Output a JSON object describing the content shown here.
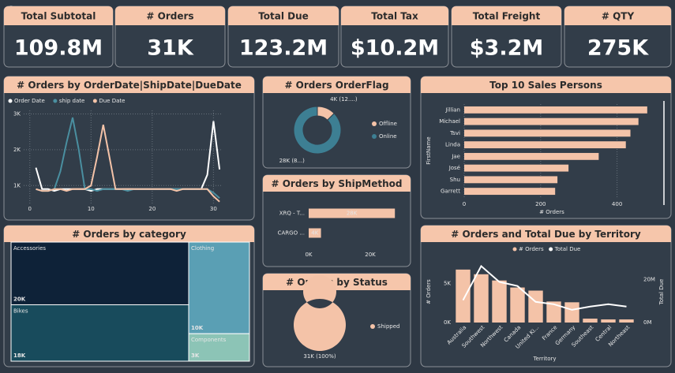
{
  "kpis": [
    {
      "label": "Total Subtotal",
      "value": "109.8M"
    },
    {
      "label": "# Orders",
      "value": "31K"
    },
    {
      "label": "Total Due",
      "value": "123.2M"
    },
    {
      "label": "Total Tax",
      "value": "$10.2M"
    },
    {
      "label": "Total Freight",
      "value": "$3.2M"
    },
    {
      "label": "# QTY",
      "value": "275K"
    }
  ],
  "chart_data": [
    {
      "type": "line",
      "title": "# Orders by OrderDate|ShipDate|DueDate",
      "x": [
        1,
        2,
        3,
        4,
        5,
        6,
        7,
        8,
        9,
        10,
        11,
        12,
        13,
        14,
        15,
        16,
        17,
        18,
        19,
        20,
        21,
        22,
        23,
        24,
        25,
        26,
        27,
        28,
        29,
        30,
        31
      ],
      "xlim": [
        -1,
        31.5
      ],
      "xticks": [
        0,
        10,
        20,
        30
      ],
      "ylim": [
        500,
        3100
      ],
      "yticks": [
        {
          "value": 1000,
          "label": "1K"
        },
        {
          "value": 2000,
          "label": "2K"
        },
        {
          "value": 3000,
          "label": "3K"
        }
      ],
      "grid": true,
      "series": [
        {
          "name": "Order Date",
          "color": "#ffffff",
          "values": [
            1500,
            900,
            900,
            850,
            900,
            900,
            900,
            900,
            900,
            850,
            900,
            900,
            900,
            900,
            900,
            900,
            900,
            900,
            900,
            900,
            900,
            900,
            900,
            900,
            900,
            900,
            900,
            900,
            1300,
            2800,
            1450
          ]
        },
        {
          "name": "ship date",
          "color": "#4a8fa0",
          "values": [
            900,
            850,
            850,
            900,
            1400,
            2200,
            2900,
            2000,
            900,
            900,
            850,
            900,
            900,
            900,
            900,
            850,
            900,
            900,
            900,
            900,
            900,
            900,
            900,
            900,
            900,
            900,
            900,
            900,
            900,
            800,
            650
          ]
        },
        {
          "name": "Due Date",
          "color": "#f4c3a8",
          "values": [
            900,
            850,
            850,
            900,
            900,
            850,
            900,
            900,
            900,
            1000,
            1800,
            2700,
            1800,
            900,
            900,
            900,
            900,
            900,
            900,
            900,
            900,
            900,
            900,
            850,
            900,
            900,
            900,
            900,
            900,
            700,
            550
          ]
        }
      ]
    },
    {
      "type": "pie",
      "donut": true,
      "title": "# Orders OrderFlag",
      "categories": [
        "Offline",
        "Online"
      ],
      "values": [
        4000,
        28000
      ],
      "value_labels": [
        "4K (12....)",
        "28K (8...)"
      ],
      "colors": [
        "#f4c3a8",
        "#3d7f93"
      ]
    },
    {
      "type": "hbar",
      "title": "# Orders by ShipMethod",
      "categories": [
        "XRQ - T...",
        "CARGO ..."
      ],
      "values": [
        28000,
        4000
      ],
      "value_labels": [
        "28K",
        "4K"
      ],
      "color": "#f4c3a8",
      "xlim": [
        0,
        30000
      ],
      "xticks": [
        {
          "value": 0,
          "label": "0K"
        },
        {
          "value": 20000,
          "label": "20K"
        }
      ],
      "grid": false
    },
    {
      "type": "pie",
      "donut": true,
      "title": "# Orders by Status",
      "categories": [
        "Shipped"
      ],
      "values": [
        31000
      ],
      "value_labels": [
        "31K (100%)"
      ],
      "colors": [
        "#f4c3a8"
      ]
    },
    {
      "type": "hbar",
      "title": "Top 10 Sales Persons",
      "categories": [
        "Jillian",
        "Michael",
        "Tsvi",
        "Linda",
        "Jae",
        "José",
        "Shu",
        "Garrett"
      ],
      "values": [
        479,
        456,
        435,
        423,
        352,
        273,
        244,
        238
      ],
      "color": "#f4c3a8",
      "xlim": [
        0,
        500
      ],
      "xticks": [
        0,
        200,
        400
      ],
      "xlabel": "# Orders",
      "ylabel": "FirstName",
      "grid": true
    },
    {
      "type": "treemap",
      "title": "# Orders by category",
      "categories": [
        "Accessories",
        "Bikes",
        "Clothing",
        "Components"
      ],
      "values": [
        20000,
        18000,
        10000,
        3000
      ],
      "value_labels": [
        "20K",
        "18K",
        "10K",
        "3K"
      ],
      "colors": [
        "#0e2238",
        "#184b5c",
        "#5a9fb4",
        "#8cc4b6"
      ]
    },
    {
      "type": "combo",
      "title": "# Orders and Total Due by Territory",
      "categories": [
        "Australia",
        "Southwest",
        "Northwest",
        "Canada",
        "United Ki...",
        "France",
        "Germany",
        "Southeast",
        "Central",
        "Northeast"
      ],
      "ylim": [
        0,
        8000
      ],
      "yticks": [
        {
          "value": 0,
          "label": "0K"
        },
        {
          "value": 5000,
          "label": "5K"
        }
      ],
      "y2lim": [
        0,
        29000000
      ],
      "y2ticks": [
        {
          "value": 0,
          "label": "0M"
        },
        {
          "value": 20000000,
          "label": "20M"
        }
      ],
      "ylabel": "# Orders",
      "y2label": "Total Due",
      "xlabel": "Territory",
      "series": [
        {
          "name": "# Orders",
          "color": "#f4c3a8",
          "kind": "bar",
          "values": [
            6800,
            6200,
            5400,
            4500,
            4100,
            2700,
            2600,
            500,
            400,
            400
          ]
        },
        {
          "name": "Total Due",
          "color": "#ffffff",
          "kind": "line",
          "axis": "y2",
          "values": [
            10400000,
            26300000,
            18900000,
            17000000,
            9600000,
            8500000,
            5900000,
            7400000,
            8500000,
            7400000
          ]
        }
      ]
    }
  ]
}
